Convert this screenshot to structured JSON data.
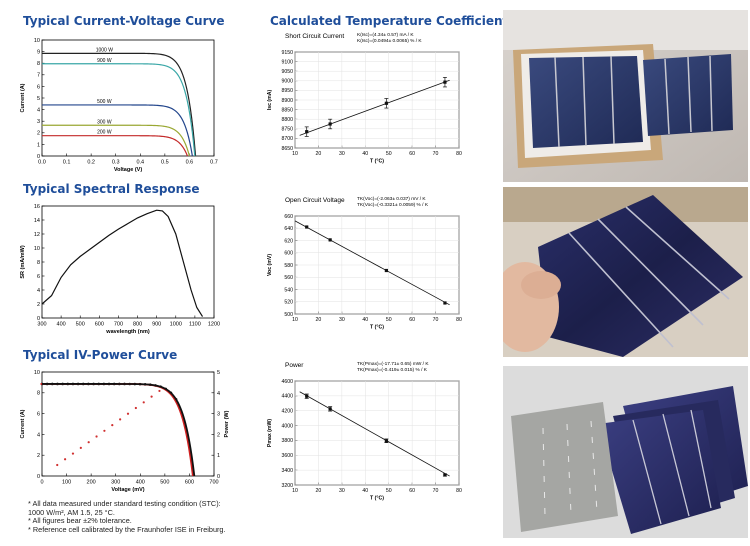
{
  "titles": {
    "iv": "Typical Current-Voltage Curve",
    "spectral": "Typical Spectral Response",
    "ivpower": "Typical IV-Power Curve",
    "coeffs": "Calculated Temperature Coefficients"
  },
  "footnotes": [
    "* All data measured under standard testing condition (STC):",
    "  1000 W/m², AM 1.5, 25 °C.",
    "* All figures bear ±2% tolerance.",
    "* Reference cell calibrated by the Fraunhofer ISE in Freiburg."
  ],
  "colors": {
    "title_blue": "#1f4e9a",
    "curve_1000": "#222222",
    "curve_900": "#3aa7a7",
    "curve_500": "#23468c",
    "curve_300": "#9aa833",
    "curve_200": "#c42a2a",
    "power_dots": "#d03030"
  },
  "chart_data": [
    {
      "id": "iv",
      "type": "line",
      "xlabel": "Voltage (V)",
      "ylabel": "Current (A)",
      "xlim": [
        0,
        0.7
      ],
      "ylim": [
        0,
        10
      ],
      "xticks": [
        "0.0",
        "0.1",
        "0.2",
        "0.3",
        "0.4",
        "0.5",
        "0.6",
        "0.7"
      ],
      "yticks": [
        "0",
        "1",
        "2",
        "3",
        "4",
        "5",
        "6",
        "7",
        "8",
        "9",
        "10"
      ],
      "series": [
        {
          "name": "1000 W",
          "isc": 8.85,
          "voc": 0.625,
          "color": "#222222"
        },
        {
          "name": "900 W",
          "isc": 7.95,
          "voc": 0.622,
          "color": "#3aa7a7"
        },
        {
          "name": "500 W",
          "isc": 4.4,
          "voc": 0.612,
          "color": "#23468c"
        },
        {
          "name": "300 W",
          "isc": 2.65,
          "voc": 0.6,
          "color": "#9aa833"
        },
        {
          "name": "200 W",
          "isc": 1.75,
          "voc": 0.592,
          "color": "#c42a2a"
        }
      ]
    },
    {
      "id": "spectral",
      "type": "line",
      "xlabel": "wavelength (nm)",
      "ylabel": "SR (mA/mW)",
      "xlim": [
        300,
        1200
      ],
      "ylim": [
        0,
        16
      ],
      "xticks": [
        "300",
        "400",
        "500",
        "600",
        "700",
        "800",
        "900",
        "1000",
        "1100",
        "1200"
      ],
      "yticks": [
        "0",
        "2",
        "4",
        "6",
        "8",
        "10",
        "12",
        "14",
        "16"
      ],
      "x": [
        300,
        350,
        400,
        450,
        500,
        550,
        600,
        650,
        700,
        750,
        800,
        850,
        900,
        930,
        960,
        1000,
        1040,
        1080,
        1110,
        1140
      ],
      "y": [
        2.0,
        3.2,
        5.8,
        7.6,
        8.8,
        9.8,
        10.8,
        11.8,
        12.7,
        13.5,
        14.3,
        14.9,
        15.4,
        15.3,
        14.5,
        12.0,
        8.0,
        4.0,
        1.5,
        0.2
      ]
    },
    {
      "id": "ivpower",
      "type": "line",
      "xlabel": "Voltage (mV)",
      "ylabel": "Current (A)",
      "y2label": "Power (W)",
      "xlim": [
        0,
        700
      ],
      "ylim": [
        0,
        10
      ],
      "y2lim": [
        0,
        5
      ],
      "xticks": [
        "0",
        "100",
        "200",
        "300",
        "400",
        "500",
        "600",
        "700"
      ],
      "yticks": [
        "0",
        "2",
        "4",
        "6",
        "8",
        "10"
      ],
      "y2ticks": [
        "0",
        "1",
        "2",
        "3",
        "4",
        "5"
      ],
      "iv_isc": 8.85,
      "iv_voc": 620,
      "pmax": 4.4
    },
    {
      "id": "isc",
      "type": "scatter",
      "title": "Short Circuit Current",
      "annotation": [
        "K(Isc)=(4.34± 0.57) mA / K",
        "K(Isc)=(0.0494± 0.0065) % / K"
      ],
      "xlabel": "T (°C)",
      "ylabel": "Isc (mA)",
      "xlim": [
        10,
        80
      ],
      "ylim": [
        8650,
        9150
      ],
      "xticks": [
        "10",
        "20",
        "30",
        "40",
        "50",
        "60",
        "70",
        "80"
      ],
      "yticks": [
        "8650",
        "8700",
        "8750",
        "8800",
        "8850",
        "8900",
        "8950",
        "9000",
        "9050",
        "9100",
        "9150"
      ],
      "x": [
        15,
        25,
        49,
        74
      ],
      "y": [
        8735,
        8775,
        8883,
        8993
      ],
      "err": [
        25,
        25,
        25,
        25
      ],
      "fit": [
        [
          12,
          8716
        ],
        [
          76,
          9003
        ]
      ]
    },
    {
      "id": "voc",
      "type": "scatter",
      "title": "Open Circuit Voltage",
      "annotation": [
        "TK(Voc)=(-2.063± 0.037) mV / K",
        "TK(Voc)=(-0.3321± 0.0059) % / K"
      ],
      "xlabel": "T (°C)",
      "ylabel": "Voc (mV)",
      "xlim": [
        10,
        80
      ],
      "ylim": [
        500,
        660
      ],
      "xticks": [
        "10",
        "20",
        "30",
        "40",
        "50",
        "60",
        "70",
        "80"
      ],
      "yticks": [
        "500",
        "520",
        "540",
        "560",
        "580",
        "600",
        "620",
        "640",
        "660"
      ],
      "x": [
        15,
        25,
        49,
        74
      ],
      "y": [
        642,
        621,
        571,
        518
      ],
      "fit": [
        [
          10,
          652
        ],
        [
          76,
          515
        ]
      ]
    },
    {
      "id": "power",
      "type": "scatter",
      "title": "Power",
      "annotation": [
        "TK(Pmax)=(-17.71± 0.65) mW / K",
        "TK(Pmax)=(-0.419± 0.015) % / K"
      ],
      "xlabel": "T (°C)",
      "ylabel": "Pmax (mW)",
      "xlim": [
        10,
        80
      ],
      "ylim": [
        3200,
        4600
      ],
      "xticks": [
        "10",
        "20",
        "30",
        "40",
        "50",
        "60",
        "70",
        "80"
      ],
      "yticks": [
        "3200",
        "3400",
        "3600",
        "3800",
        "4000",
        "4200",
        "4400",
        "4600"
      ],
      "x": [
        15,
        25,
        49,
        74
      ],
      "y": [
        4395,
        4225,
        3795,
        3335
      ],
      "err": [
        30,
        30,
        25,
        15
      ],
      "fit": [
        [
          12,
          4455
        ],
        [
          76,
          3320
        ]
      ]
    }
  ]
}
